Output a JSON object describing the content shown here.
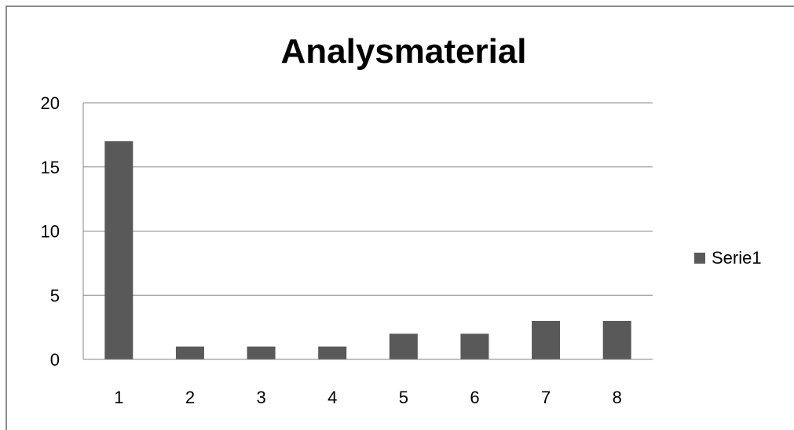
{
  "chart_data": {
    "type": "bar",
    "title": "Analysmaterial",
    "categories": [
      "1",
      "2",
      "3",
      "4",
      "5",
      "6",
      "7",
      "8"
    ],
    "series": [
      {
        "name": "Serie1",
        "values": [
          17,
          1,
          1,
          1,
          2,
          2,
          3,
          3
        ]
      }
    ],
    "ylim": [
      0,
      20
    ],
    "yticks": [
      0,
      5,
      10,
      15,
      20
    ],
    "grid": true,
    "legend_position": "right",
    "colors": {
      "bar": "#595959",
      "grid": "#868686",
      "axis": "#868686"
    }
  }
}
